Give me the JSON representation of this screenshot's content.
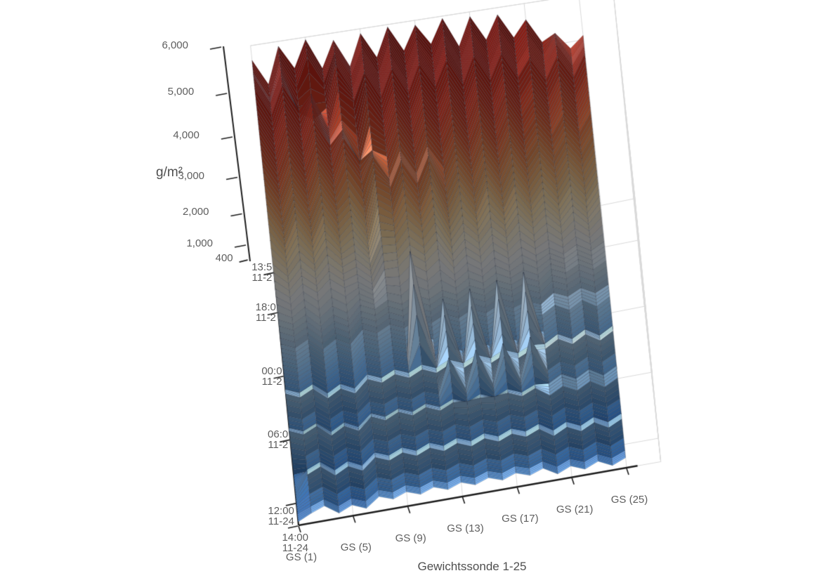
{
  "chart_data": {
    "type": "surface3d",
    "title": "",
    "xlabel": "Gewichtssonde 1-25",
    "value_axis_label": "g/m²",
    "value_axis_ticks": [
      {
        "v": 400,
        "label": "400"
      },
      {
        "v": 1000,
        "label": "1,000"
      },
      {
        "v": 2000,
        "label": "2,000"
      },
      {
        "v": 3000,
        "label": "3,000"
      },
      {
        "v": 4000,
        "label": "4,000"
      },
      {
        "v": 5000,
        "label": "5,000"
      },
      {
        "v": 6000,
        "label": "6,000"
      }
    ],
    "value_range": [
      400,
      6000
    ],
    "x_ticks": [
      {
        "col": 0,
        "label": "GS (1)"
      },
      {
        "col": 4,
        "label": "GS (5)"
      },
      {
        "col": 8,
        "label": "GS (9)"
      },
      {
        "col": 12,
        "label": "GS (13)"
      },
      {
        "col": 16,
        "label": "GS (17)"
      },
      {
        "col": 20,
        "label": "GS (21)"
      },
      {
        "col": 24,
        "label": "GS (25)"
      }
    ],
    "time_ticks": [
      {
        "t": 0.012,
        "line1": "13:5",
        "line2": "11-2"
      },
      {
        "t": 0.168,
        "line1": "18:0",
        "line2": "11-2"
      },
      {
        "t": 0.416,
        "line1": "00:0",
        "line2": "11-2"
      },
      {
        "t": 0.664,
        "line1": "06:0",
        "line2": "11-2"
      },
      {
        "t": 0.912,
        "line1": "12:00",
        "line2": "11-24"
      },
      {
        "t": 1.0,
        "line1": "14:00",
        "line2": "11-24"
      }
    ],
    "columns": 25,
    "rows": 30,
    "colormap": [
      [
        380,
        "#2a5ca8"
      ],
      [
        700,
        "#3f7dc4"
      ],
      [
        1000,
        "#5e97d2"
      ],
      [
        1400,
        "#8ab8e0"
      ],
      [
        1800,
        "#b4d2ec"
      ],
      [
        2200,
        "#d8e6f2"
      ],
      [
        2600,
        "#efeff0"
      ],
      [
        3000,
        "#f7ecd4"
      ],
      [
        3400,
        "#f6d8a6"
      ],
      [
        3800,
        "#f0b478"
      ],
      [
        4200,
        "#e78a52"
      ],
      [
        4600,
        "#da5c36"
      ],
      [
        5000,
        "#cc3b26"
      ],
      [
        5400,
        "#bc281b"
      ],
      [
        6000,
        "#9c1410"
      ]
    ],
    "values": [
      [
        5700,
        5150,
        5900,
        5400,
        5950,
        5300,
        5850,
        5250,
        5900,
        5350,
        5950,
        5400,
        5900,
        5450,
        5950,
        5300,
        5900,
        5350,
        5850,
        5300,
        5650,
        5100,
        5250,
        4850,
        5100
      ],
      [
        5650,
        5050,
        5800,
        5200,
        5800,
        5200,
        5800,
        5250,
        5800,
        5200,
        5850,
        5250,
        5800,
        5300,
        5850,
        5200,
        5800,
        5250,
        5750,
        5200,
        5550,
        5000,
        5400,
        4850,
        5200
      ],
      [
        5750,
        5150,
        5750,
        4850,
        4650,
        4850,
        5750,
        5150,
        5750,
        5150,
        5750,
        5150,
        5750,
        5200,
        5800,
        5150,
        5750,
        5150,
        5700,
        5100,
        5500,
        4950,
        5450,
        4900,
        5300
      ],
      [
        5700,
        5100,
        5700,
        5100,
        5400,
        4600,
        5400,
        5100,
        5700,
        5100,
        5700,
        5100,
        5700,
        5150,
        5700,
        5100,
        5700,
        5100,
        5650,
        5050,
        5450,
        4900,
        5400,
        4850,
        5350
      ],
      [
        5450,
        4850,
        5450,
        4850,
        5450,
        4550,
        4950,
        4550,
        5450,
        4850,
        5450,
        4850,
        5450,
        4900,
        5450,
        4850,
        5450,
        4850,
        5400,
        4800,
        5200,
        4650,
        5150,
        4600,
        5100
      ],
      [
        5250,
        4650,
        5250,
        4650,
        5250,
        4650,
        4950,
        4150,
        4950,
        4650,
        5250,
        4650,
        5250,
        4700,
        5250,
        4650,
        5250,
        4650,
        5200,
        4600,
        5000,
        4450,
        4950,
        4400,
        4900
      ],
      [
        5000,
        4400,
        5000,
        4400,
        5000,
        4400,
        5000,
        4400,
        4600,
        4400,
        5000,
        4400,
        5000,
        4450,
        5000,
        4400,
        5000,
        4400,
        4950,
        4350,
        4750,
        4250,
        4700,
        4200,
        4650
      ],
      [
        4700,
        4100,
        4700,
        4100,
        4700,
        4100,
        4700,
        4100,
        4700,
        4100,
        4700,
        4100,
        4700,
        4150,
        4700,
        4100,
        4700,
        4100,
        4650,
        4050,
        4450,
        3950,
        4400,
        3900,
        4350
      ],
      [
        4350,
        3750,
        4350,
        3750,
        4350,
        3750,
        4050,
        3450,
        4350,
        4100,
        4700,
        4100,
        4700,
        3800,
        4350,
        3750,
        4350,
        3750,
        4300,
        3700,
        4100,
        3600,
        4050,
        3550,
        4000
      ],
      [
        3950,
        3350,
        3950,
        3350,
        3950,
        3350,
        3650,
        3050,
        3950,
        3700,
        4300,
        3700,
        4300,
        3400,
        3950,
        3350,
        3950,
        3350,
        3900,
        3300,
        3700,
        3200,
        3650,
        3150,
        3600
      ],
      [
        3400,
        3000,
        3400,
        3000,
        3400,
        3000,
        3150,
        2750,
        3400,
        3350,
        3750,
        3350,
        3750,
        3000,
        3400,
        3000,
        3400,
        3000,
        3400,
        2950,
        3250,
        2850,
        3200,
        2800,
        3150
      ],
      [
        2800,
        2500,
        2800,
        2500,
        2800,
        2500,
        2600,
        2300,
        2800,
        2800,
        3100,
        2800,
        3100,
        2500,
        2800,
        2500,
        2800,
        2500,
        2750,
        2450,
        2600,
        2350,
        2550,
        2300,
        2500
      ],
      [
        2200,
        2000,
        2200,
        1800,
        2050,
        1800,
        2200,
        2000,
        2200,
        2000,
        2200,
        2000,
        2200,
        2000,
        2200,
        2000,
        2200,
        2000,
        2150,
        1950,
        2250,
        2050,
        2250,
        2000,
        2200
      ],
      [
        1750,
        1550,
        1750,
        1350,
        1600,
        1350,
        1750,
        1550,
        1750,
        1550,
        1750,
        1550,
        1750,
        1550,
        1750,
        1550,
        1750,
        1550,
        1700,
        1500,
        1800,
        1600,
        1800,
        1550,
        1750
      ],
      [
        1500,
        1300,
        1500,
        1100,
        1350,
        1100,
        1500,
        1300,
        1500,
        1300,
        1500,
        1300,
        1500,
        1300,
        1500,
        1300,
        1500,
        1300,
        1500,
        1450,
        1700,
        1450,
        1700,
        1400,
        1650
      ],
      [
        1250,
        1050,
        1250,
        850,
        1100,
        850,
        1250,
        1050,
        1250,
        1050,
        4100,
        1050,
        1250,
        1050,
        1250,
        1050,
        1250,
        1050,
        1250,
        1200,
        1450,
        1200,
        1450,
        1150,
        1400
      ],
      [
        1000,
        800,
        1000,
        600,
        850,
        600,
        1000,
        800,
        1000,
        800,
        1000,
        800,
        3000,
        800,
        3150,
        800,
        3250,
        800,
        3350,
        950,
        1200,
        950,
        1200,
        900,
        1150
      ],
      [
        1450,
        1250,
        1450,
        1050,
        1300,
        1050,
        1450,
        1250,
        1450,
        1250,
        1450,
        1250,
        1450,
        1250,
        1450,
        1250,
        1450,
        1250,
        1450,
        1400,
        1650,
        1400,
        1650,
        1350,
        1600
      ],
      [
        1600,
        1400,
        1600,
        1200,
        1450,
        1200,
        1600,
        1400,
        1600,
        1400,
        1600,
        1400,
        1600,
        1400,
        1600,
        1400,
        1600,
        1400,
        1600,
        1550,
        1800,
        1550,
        1800,
        1500,
        1750
      ],
      [
        1150,
        950,
        1150,
        750,
        1000,
        750,
        1150,
        950,
        1150,
        950,
        1150,
        950,
        2100,
        950,
        2200,
        950,
        2250,
        950,
        2300,
        1100,
        1350,
        1100,
        1350,
        1050,
        1300
      ],
      [
        900,
        700,
        900,
        500,
        750,
        500,
        900,
        700,
        900,
        700,
        900,
        700,
        900,
        700,
        900,
        700,
        900,
        700,
        900,
        850,
        1100,
        850,
        1100,
        800,
        1050
      ],
      [
        1350,
        1150,
        1350,
        950,
        1200,
        950,
        1350,
        1150,
        1350,
        1150,
        1350,
        1150,
        1350,
        1150,
        1350,
        1150,
        1350,
        1150,
        1350,
        1300,
        1550,
        1300,
        1550,
        1250,
        1500
      ],
      [
        1550,
        1350,
        1550,
        1150,
        1400,
        1150,
        1550,
        1350,
        1550,
        1350,
        1550,
        1350,
        1550,
        1500,
        1550,
        1500,
        1550,
        1350,
        1550,
        1200,
        1450,
        1200,
        1450,
        1150,
        1400
      ],
      [
        1100,
        900,
        1100,
        700,
        950,
        700,
        1100,
        900,
        1100,
        900,
        1100,
        900,
        1100,
        900,
        1100,
        900,
        1100,
        900,
        1100,
        750,
        1000,
        750,
        1000,
        700,
        950
      ],
      [
        600,
        650,
        850,
        450,
        700,
        450,
        850,
        650,
        850,
        650,
        850,
        650,
        850,
        650,
        850,
        650,
        850,
        650,
        850,
        500,
        750,
        500,
        750,
        450,
        700
      ],
      [
        520,
        1050,
        1250,
        850,
        1100,
        850,
        1250,
        1050,
        1250,
        1050,
        1250,
        1050,
        1250,
        1050,
        1250,
        1050,
        1250,
        1050,
        1250,
        900,
        1150,
        900,
        1150,
        850,
        1100
      ],
      [
        460,
        1200,
        1400,
        1000,
        1250,
        1000,
        1400,
        1200,
        1400,
        1200,
        1400,
        1200,
        1400,
        1200,
        1400,
        1200,
        1400,
        1200,
        1400,
        1050,
        1300,
        1050,
        1300,
        1000,
        1250
      ],
      [
        430,
        800,
        1000,
        600,
        850,
        600,
        1000,
        800,
        1000,
        800,
        1000,
        800,
        1000,
        800,
        1000,
        800,
        1000,
        800,
        1000,
        650,
        900,
        650,
        900,
        600,
        850
      ],
      [
        420,
        650,
        850,
        450,
        700,
        450,
        850,
        650,
        850,
        650,
        850,
        650,
        850,
        650,
        850,
        650,
        850,
        650,
        850,
        500,
        750,
        500,
        750,
        450,
        700
      ],
      [
        480,
        750,
        950,
        550,
        800,
        550,
        950,
        750,
        950,
        750,
        950,
        750,
        950,
        750,
        950,
        750,
        950,
        750,
        950,
        600,
        850,
        600,
        850,
        550,
        800
      ]
    ],
    "layout": {
      "grid": true,
      "legend": false,
      "wall_grid_color": "#d9d9d9",
      "axis_color": "#1c1c1c",
      "label_color": "#5e5e5e",
      "title_color": "#4f4f4f",
      "background": "#ffffff"
    }
  }
}
